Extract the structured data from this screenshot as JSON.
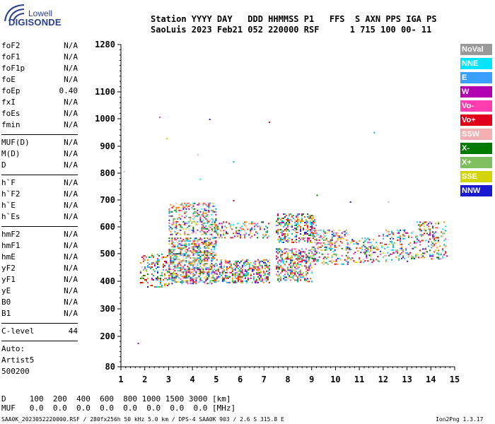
{
  "logo": {
    "line1": "Lowell",
    "line2": "DIGISONDE"
  },
  "header": {
    "line1": "Station YYYY DAY   DDD HHMMSS P1   FFS  S AXN PPS IGA PS",
    "line2": "SaoLuis 2023 Feb21 052 220000 RSF      1 715 100 00- 11"
  },
  "params": {
    "group1": [
      {
        "k": "foF2",
        "v": "N/A"
      },
      {
        "k": "foF1",
        "v": "N/A"
      },
      {
        "k": "foF1p",
        "v": "N/A"
      },
      {
        "k": "foE",
        "v": "N/A"
      },
      {
        "k": "foEp",
        "v": "0.40"
      },
      {
        "k": "fxI",
        "v": "N/A"
      },
      {
        "k": "foEs",
        "v": "N/A"
      },
      {
        "k": "fmin",
        "v": "N/A"
      }
    ],
    "group2": [
      {
        "k": "MUF(D)",
        "v": "N/A"
      },
      {
        "k": "M(D)",
        "v": "N/A"
      },
      {
        "k": "D",
        "v": "N/A"
      }
    ],
    "group3": [
      {
        "k": "h`F",
        "v": "N/A"
      },
      {
        "k": "h`F2",
        "v": "N/A"
      },
      {
        "k": "h`E",
        "v": "N/A"
      },
      {
        "k": "h`Es",
        "v": "N/A"
      }
    ],
    "group4": [
      {
        "k": "hmF2",
        "v": "N/A"
      },
      {
        "k": "hmF1",
        "v": "N/A"
      },
      {
        "k": "hmE",
        "v": "N/A"
      },
      {
        "k": "yF2",
        "v": "N/A"
      },
      {
        "k": "yF1",
        "v": "N/A"
      },
      {
        "k": "yE",
        "v": "N/A"
      },
      {
        "k": "B0",
        "v": "N/A"
      },
      {
        "k": "B1",
        "v": "N/A"
      }
    ],
    "clevel": {
      "k": "C-level",
      "v": "44"
    },
    "auto": [
      "Auto:",
      "Artist5",
      "500200"
    ]
  },
  "legend": [
    {
      "label": "NoVal",
      "color": "#999999"
    },
    {
      "label": "NNE",
      "color": "#00e5ff"
    },
    {
      "label": "E",
      "color": "#3aa0ff"
    },
    {
      "label": "W",
      "color": "#b000b0"
    },
    {
      "label": "Vo-",
      "color": "#ff3db0"
    },
    {
      "label": "Vo+",
      "color": "#e0001a"
    },
    {
      "label": "SSW",
      "color": "#f4b0b0"
    },
    {
      "label": "X-",
      "color": "#007a00"
    },
    {
      "label": "X+",
      "color": "#7fbf5f"
    },
    {
      "label": "SSE",
      "color": "#d4d400"
    },
    {
      "label": "NNW",
      "color": "#1a1ad0"
    }
  ],
  "footer": {
    "line1": "D     100  200  400  600  800 1000 1500 3000 [km]",
    "line2": "MUF   0.0  0.0  0.0  0.0  0.0  0.0  0.0  0.0 [MHz]",
    "file": "SAA0K_2023052220000.RSF / 280fx256h 50 kHz 5.0 km / DPS-4 SAA0K 903 / 2.6 S 315.8 E",
    "version": "Ion2Png 1.3.17"
  },
  "chart_data": {
    "type": "scatter",
    "x_ticks": [
      1,
      2,
      3,
      4,
      5,
      6,
      7,
      8,
      9,
      10,
      11,
      12,
      13,
      14,
      15
    ],
    "y_ticks": [
      80,
      200,
      300,
      400,
      500,
      600,
      700,
      800,
      900,
      1000,
      1100,
      1280
    ],
    "xlim": [
      1,
      15
    ],
    "ylim": [
      80,
      1280
    ],
    "clusters": [
      {
        "x": [
          1.8,
          3.0
        ],
        "y": [
          380,
          500
        ],
        "dense": 0.55
      },
      {
        "x": [
          3.0,
          5.0
        ],
        "y": [
          390,
          560
        ],
        "dense": 0.9
      },
      {
        "x": [
          3.0,
          5.0
        ],
        "y": [
          570,
          690
        ],
        "dense": 0.6
      },
      {
        "x": [
          5.0,
          7.2
        ],
        "y": [
          395,
          480
        ],
        "dense": 0.85
      },
      {
        "x": [
          4.8,
          7.2
        ],
        "y": [
          560,
          620
        ],
        "dense": 0.45
      },
      {
        "x": [
          7.5,
          9.0
        ],
        "y": [
          400,
          520
        ],
        "dense": 0.8
      },
      {
        "x": [
          7.5,
          9.2
        ],
        "y": [
          540,
          650
        ],
        "dense": 0.65
      },
      {
        "x": [
          9.0,
          10.5
        ],
        "y": [
          460,
          590
        ],
        "dense": 0.55
      },
      {
        "x": [
          10.5,
          11.8
        ],
        "y": [
          470,
          560
        ],
        "dense": 0.45
      },
      {
        "x": [
          11.8,
          13.4
        ],
        "y": [
          470,
          590
        ],
        "dense": 0.4
      },
      {
        "x": [
          13.4,
          14.7
        ],
        "y": [
          480,
          620
        ],
        "dense": 0.4
      }
    ],
    "outliers": [
      {
        "x": 2.6,
        "y": 1008
      },
      {
        "x": 2.9,
        "y": 930
      },
      {
        "x": 4.7,
        "y": 1000
      },
      {
        "x": 4.2,
        "y": 870
      },
      {
        "x": 4.3,
        "y": 780
      },
      {
        "x": 5.7,
        "y": 845
      },
      {
        "x": 7.2,
        "y": 990
      },
      {
        "x": 11.6,
        "y": 952
      },
      {
        "x": 1.1,
        "y": 808
      },
      {
        "x": 1.7,
        "y": 175
      },
      {
        "x": 5.7,
        "y": 700
      },
      {
        "x": 12.2,
        "y": 695
      },
      {
        "x": 9.2,
        "y": 720
      },
      {
        "x": 10.6,
        "y": 695
      }
    ]
  }
}
